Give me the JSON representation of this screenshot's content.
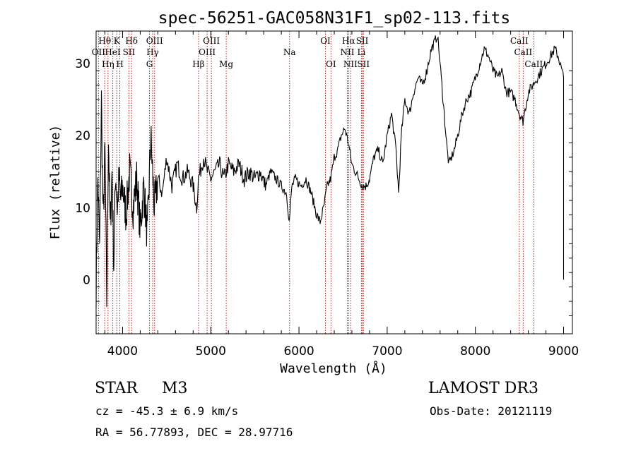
{
  "chart_data": {
    "type": "line",
    "title": "spec-56251-GAC058N31F1_sp02-113.fits",
    "xlabel": "Wavelength (Å)",
    "ylabel": "Flux (relative)",
    "xlim": [
      3700,
      9100
    ],
    "ylim": [
      -7.5,
      34.5
    ],
    "xticks": [
      4000,
      5000,
      6000,
      7000,
      8000,
      9000
    ],
    "xtick_labels": [
      "4000",
      "5000",
      "6000",
      "7000",
      "8000",
      "9000"
    ],
    "yticks": [
      0,
      10,
      20,
      30
    ],
    "ytick_labels": [
      "0",
      "10",
      "20",
      "30"
    ],
    "grid": false,
    "series": [
      {
        "name": "flux",
        "x": [
          3700,
          3720,
          3740,
          3760,
          3780,
          3800,
          3820,
          3840,
          3860,
          3880,
          3900,
          3920,
          3940,
          3960,
          3980,
          4000,
          4040,
          4080,
          4120,
          4160,
          4200,
          4240,
          4280,
          4320,
          4360,
          4400,
          4450,
          4500,
          4560,
          4620,
          4680,
          4740,
          4800,
          4840,
          4860,
          4880,
          4920,
          4960,
          5000,
          5050,
          5100,
          5150,
          5200,
          5260,
          5320,
          5380,
          5440,
          5500,
          5560,
          5620,
          5680,
          5740,
          5800,
          5860,
          5890,
          5920,
          5960,
          6020,
          6080,
          6140,
          6200,
          6240,
          6280,
          6320,
          6360,
          6400,
          6440,
          6480,
          6520,
          6560,
          6600,
          6640,
          6680,
          6720,
          6760,
          6800,
          6850,
          6900,
          6950,
          7000,
          7050,
          7100,
          7130,
          7160,
          7200,
          7250,
          7300,
          7350,
          7400,
          7450,
          7500,
          7540,
          7570,
          7600,
          7640,
          7680,
          7700,
          7730,
          7760,
          7800,
          7850,
          7900,
          7950,
          8000,
          8050,
          8100,
          8150,
          8200,
          8250,
          8300,
          8350,
          8400,
          8450,
          8500,
          8540,
          8570,
          8600,
          8650,
          8700,
          8750,
          8800,
          8850,
          8900,
          8940,
          8980,
          9000,
          9000
        ],
        "y": [
          -1,
          14,
          4,
          25,
          8,
          18,
          -3,
          20,
          7,
          15,
          2,
          15,
          10,
          14,
          11,
          13,
          9,
          15,
          10,
          14,
          7,
          13,
          6,
          20,
          10,
          14,
          12,
          17,
          13,
          16,
          14,
          15,
          13,
          10,
          14,
          15,
          17,
          15,
          14,
          15,
          16,
          14,
          16,
          15,
          16,
          14,
          15,
          14,
          15,
          13,
          15,
          14,
          13,
          12,
          8,
          13,
          14,
          13,
          14,
          12,
          9,
          8,
          10,
          13,
          14,
          17,
          18,
          20,
          21,
          19,
          16,
          15,
          14,
          13,
          13,
          14,
          17,
          18,
          16,
          20,
          23,
          18,
          12,
          20,
          25,
          23,
          26,
          28,
          27,
          29,
          32,
          33,
          34,
          30,
          24,
          18,
          16,
          17,
          18,
          20,
          23,
          25,
          26,
          28,
          30,
          32,
          31,
          29,
          28,
          29,
          26,
          26,
          25,
          23,
          22,
          24,
          26,
          27,
          28,
          29,
          30,
          31,
          32,
          31,
          29,
          28,
          0
        ]
      }
    ],
    "lines": [
      {
        "name": "H-theta",
        "label": "Hθ",
        "x": 3798,
        "row": 1
      },
      {
        "name": "OII",
        "label": "OII",
        "x": 3727,
        "row": 2
      },
      {
        "name": "H-eta",
        "label": "Hη",
        "x": 3835,
        "row": 3
      },
      {
        "name": "K",
        "label": "K",
        "x": 3934,
        "row": 1
      },
      {
        "name": "HeI",
        "label": "HeI",
        "x": 3889,
        "row": 2
      },
      {
        "name": "H",
        "label": "H",
        "x": 3969,
        "row": 3
      },
      {
        "name": "H-delta",
        "label": "Hδ",
        "x": 4102,
        "row": 1
      },
      {
        "name": "SII-4072",
        "label": "SII",
        "x": 4072,
        "row": 2
      },
      {
        "name": "OIII-4363",
        "label": "OIII",
        "x": 4363,
        "row": 1
      },
      {
        "name": "H-gamma",
        "label": "Hγ",
        "x": 4341,
        "row": 2
      },
      {
        "name": "G",
        "label": "G",
        "x": 4305,
        "row": 3
      },
      {
        "name": "H-beta",
        "label": "Hβ",
        "x": 4861,
        "row": 3
      },
      {
        "name": "OIII-5007",
        "label": "OIII",
        "x": 5007,
        "row": 1
      },
      {
        "name": "OIII-4959",
        "label": "OIII",
        "x": 4959,
        "row": 2
      },
      {
        "name": "Mg",
        "label": "Mg",
        "x": 5175,
        "row": 3
      },
      {
        "name": "Na",
        "label": "Na",
        "x": 5893,
        "row": 2
      },
      {
        "name": "OI-6300",
        "label": "OI",
        "x": 6300,
        "row": 1
      },
      {
        "name": "OI-6363",
        "label": "OI",
        "x": 6363,
        "row": 3
      },
      {
        "name": "H-alpha",
        "label": "Hα",
        "x": 6563,
        "row": 1
      },
      {
        "name": "NII-6548",
        "label": "NII",
        "x": 6548,
        "row": 2
      },
      {
        "name": "NII-6583",
        "label": "NII",
        "x": 6583,
        "row": 3
      },
      {
        "name": "SII-6717",
        "label": "SII",
        "x": 6717,
        "row": 1
      },
      {
        "name": "Li",
        "label": "Li",
        "x": 6708,
        "row": 2
      },
      {
        "name": "SII-6731",
        "label": "SII",
        "x": 6731,
        "row": 3
      },
      {
        "name": "CaII-8498",
        "label": "CaII",
        "x": 8498,
        "row": 1
      },
      {
        "name": "CaII-8542",
        "label": "CaII",
        "x": 8542,
        "row": 2
      },
      {
        "name": "CaII-8662",
        "label": "CaII",
        "x": 8662,
        "row": 3
      }
    ],
    "colors": {
      "spectrum": "#000000",
      "line_marker": "#b31b1b",
      "axes": "#000000"
    }
  },
  "info": {
    "class_label": "STAR",
    "subclass": "M3",
    "survey": "LAMOST DR3",
    "cz": "cz = -45.3 ± 6.9 km/s",
    "obs_date": "Obs-Date: 20121119",
    "coords": "RA =  56.77893, DEC =  28.97716"
  }
}
